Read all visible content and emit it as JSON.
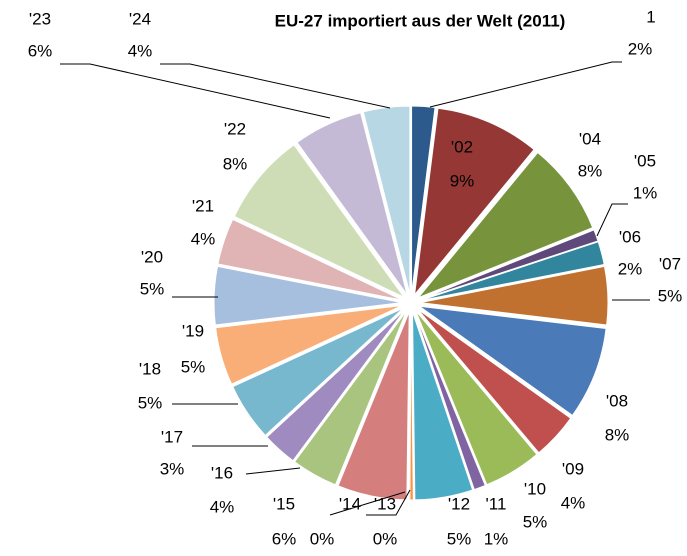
{
  "chart_data": {
    "type": "pie",
    "title": "EU-27 importiert aus der Welt (2011)",
    "categories": [
      "1",
      "'02",
      "'04",
      "'05",
      "'06",
      "'07",
      "'08",
      "'09",
      "'10",
      "'11",
      "'12",
      "'13",
      "'14",
      "'15",
      "'16",
      "'17",
      "'18",
      "'19",
      "'20",
      "'21",
      "'22",
      "'23",
      "'24"
    ],
    "values": [
      2,
      9,
      8,
      1,
      2,
      5,
      8,
      4,
      5,
      1,
      5,
      0.3,
      0.1,
      6,
      4,
      3,
      5,
      5,
      5,
      4,
      8,
      6,
      4
    ],
    "value_labels": [
      "2%",
      "9%",
      "8%",
      "1%",
      "2%",
      "5%",
      "8%",
      "4%",
      "5%",
      "1%",
      "5%",
      "0%",
      "0%",
      "6%",
      "4%",
      "3%",
      "5%",
      "5%",
      "5%",
      "4%",
      "8%",
      "6%",
      "4%"
    ],
    "colors": [
      "#2C5A8C",
      "#953735",
      "#77933C",
      "#5F497A",
      "#31859C",
      "#C0712F",
      "#4A7AB8",
      "#C0504D",
      "#9BBB59",
      "#8064A2",
      "#4BACC6",
      "#F79646",
      "#7BA0CD",
      "#D47F7D",
      "#A9C47F",
      "#9F8BC0",
      "#78B8CF",
      "#F9AE78",
      "#A7BFDE",
      "#E0B4B4",
      "#CFDDB6",
      "#C4BAD6",
      "#B6D7E3"
    ]
  }
}
